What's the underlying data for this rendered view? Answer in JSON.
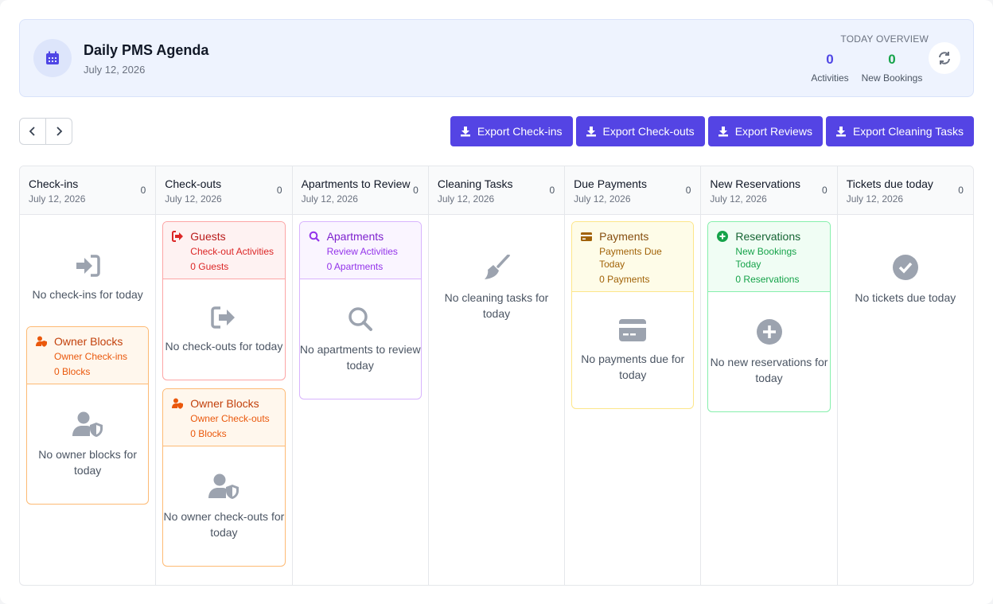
{
  "header": {
    "title": "Daily PMS Agenda",
    "date": "July 12, 2026",
    "overview_label": "TODAY OVERVIEW",
    "stats": [
      {
        "value": 0,
        "label": "Activities"
      },
      {
        "value": 0,
        "label": "New Bookings"
      }
    ]
  },
  "toolbar": {
    "buttons": [
      "Export Check-ins",
      "Export Check-outs",
      "Export Reviews",
      "Export Cleaning Tasks"
    ]
  },
  "columns": [
    {
      "title": "Check-ins",
      "date": "July 12, 2026",
      "count": 0,
      "empty": "No check-ins for today",
      "cards": [
        {
          "title": "Owner Blocks",
          "subtitle": "Owner Check-ins",
          "count_label": "0 Blocks",
          "empty": "No owner blocks for today"
        }
      ]
    },
    {
      "title": "Check-outs",
      "date": "July 12, 2026",
      "count": 0,
      "cards": [
        {
          "title": "Guests",
          "subtitle": "Check-out Activities",
          "count_label": "0 Guests",
          "empty": "No check-outs for today"
        },
        {
          "title": "Owner Blocks",
          "subtitle": "Owner Check-outs",
          "count_label": "0 Blocks",
          "empty": "No owner check-outs for today"
        }
      ]
    },
    {
      "title": "Apartments to Review",
      "date": "July 12, 2026",
      "count": 0,
      "cards": [
        {
          "title": "Apartments",
          "subtitle": "Review Activities",
          "count_label": "0 Apartments",
          "empty": "No apartments to review today"
        }
      ]
    },
    {
      "title": "Cleaning Tasks",
      "date": "July 12, 2026",
      "count": 0,
      "empty": "No cleaning tasks for today",
      "cards": []
    },
    {
      "title": "Due Payments",
      "date": "July 12, 2026",
      "count": 0,
      "cards": [
        {
          "title": "Payments",
          "subtitle": "Payments Due Today",
          "count_label": "0 Payments",
          "empty": "No payments due for today"
        }
      ]
    },
    {
      "title": "New Reservations",
      "date": "July 12, 2026",
      "count": 0,
      "cards": [
        {
          "title": "Reservations",
          "subtitle": "New Bookings Today",
          "count_label": "0 Reservations",
          "empty": "No new reservations for today"
        }
      ]
    },
    {
      "title": "Tickets due today",
      "date": "July 12, 2026",
      "count": 0,
      "empty": "No tickets due today",
      "cards": []
    }
  ]
}
